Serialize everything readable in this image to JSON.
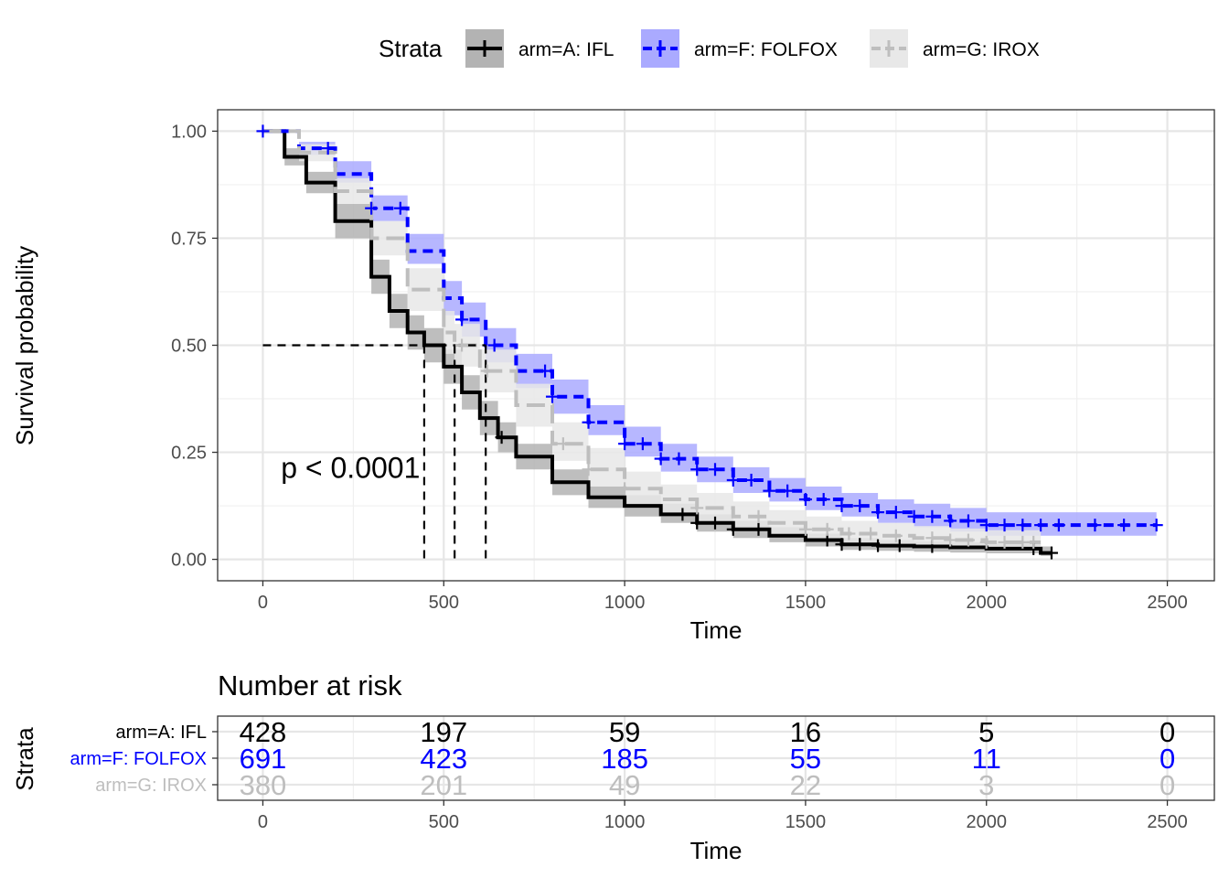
{
  "chart_data": [
    {
      "type": "line",
      "subtype": "kaplan-meier",
      "title": "",
      "xlabel": "Time",
      "ylabel": "Survival probability",
      "xlim": [
        -125,
        2630
      ],
      "ylim": [
        -0.05,
        1.05
      ],
      "x_ticks": [
        0,
        500,
        1000,
        1500,
        2000,
        2500
      ],
      "y_ticks": [
        0.0,
        0.25,
        0.5,
        0.75,
        1.0
      ],
      "y_tick_labels": [
        "0.00",
        "0.25",
        "0.50",
        "0.75",
        "1.00"
      ],
      "grid": true,
      "legend": {
        "title": "Strata",
        "position": "top",
        "entries": [
          "arm=A: IFL",
          "arm=F: FOLFOX",
          "arm=G: IROX"
        ]
      },
      "annotation": {
        "text": "p < 0.0001",
        "x": 50,
        "y": 0.19
      },
      "median_survival": {
        "y": 0.5,
        "x": [
          446,
          530,
          616
        ]
      },
      "series": [
        {
          "name": "arm=A: IFL",
          "color": "#000000",
          "fill": "#b3b3b3",
          "line_style": "solid",
          "x": [
            0,
            60,
            120,
            200,
            300,
            350,
            400,
            446,
            500,
            550,
            600,
            650,
            700,
            800,
            900,
            1000,
            1100,
            1200,
            1300,
            1400,
            1500,
            1600,
            1700,
            1800,
            1900,
            2000,
            2100,
            2150,
            2180
          ],
          "y": [
            1.0,
            0.94,
            0.88,
            0.79,
            0.66,
            0.58,
            0.53,
            0.5,
            0.45,
            0.39,
            0.33,
            0.285,
            0.24,
            0.18,
            0.145,
            0.125,
            0.105,
            0.085,
            0.07,
            0.055,
            0.045,
            0.035,
            0.032,
            0.03,
            0.028,
            0.025,
            0.025,
            0.015,
            0.015
          ],
          "ci_lower": [
            1.0,
            0.92,
            0.855,
            0.75,
            0.62,
            0.54,
            0.49,
            0.46,
            0.41,
            0.35,
            0.29,
            0.25,
            0.21,
            0.15,
            0.12,
            0.1,
            0.085,
            0.065,
            0.05,
            0.04,
            0.03,
            0.022,
            0.02,
            0.018,
            0.016,
            0.014,
            0.014,
            0.008,
            0.008
          ],
          "ci_upper": [
            1.0,
            0.96,
            0.905,
            0.83,
            0.7,
            0.62,
            0.57,
            0.54,
            0.49,
            0.43,
            0.37,
            0.32,
            0.27,
            0.21,
            0.17,
            0.15,
            0.13,
            0.105,
            0.09,
            0.075,
            0.06,
            0.05,
            0.045,
            0.042,
            0.04,
            0.038,
            0.038,
            0.03,
            0.03
          ],
          "censor_x": [
            660,
            1160,
            1200,
            1250,
            1300,
            1370,
            1560,
            1600,
            1650,
            1700,
            1760,
            1850,
            2130,
            2180
          ]
        },
        {
          "name": "arm=F: FOLFOX",
          "color": "#0000ff",
          "fill": "#aaaaff",
          "line_style": "dashed",
          "x": [
            0,
            100,
            200,
            300,
            400,
            500,
            550,
            616,
            700,
            800,
            900,
            1000,
            1100,
            1200,
            1300,
            1400,
            1500,
            1600,
            1700,
            1800,
            1900,
            2000,
            2100,
            2200,
            2300,
            2470
          ],
          "y": [
            1.0,
            0.96,
            0.9,
            0.82,
            0.72,
            0.61,
            0.56,
            0.5,
            0.44,
            0.38,
            0.32,
            0.27,
            0.235,
            0.21,
            0.185,
            0.16,
            0.14,
            0.125,
            0.11,
            0.1,
            0.09,
            0.08,
            0.08,
            0.08,
            0.08,
            0.08
          ],
          "ci_lower": [
            1.0,
            0.945,
            0.88,
            0.79,
            0.69,
            0.57,
            0.52,
            0.46,
            0.4,
            0.34,
            0.29,
            0.24,
            0.205,
            0.18,
            0.155,
            0.135,
            0.115,
            0.1,
            0.085,
            0.075,
            0.065,
            0.055,
            0.055,
            0.055,
            0.055,
            0.055
          ],
          "ci_upper": [
            1.0,
            0.975,
            0.93,
            0.85,
            0.76,
            0.65,
            0.6,
            0.54,
            0.48,
            0.42,
            0.36,
            0.31,
            0.27,
            0.24,
            0.215,
            0.19,
            0.17,
            0.155,
            0.14,
            0.13,
            0.12,
            0.11,
            0.11,
            0.11,
            0.11,
            0.11
          ],
          "censor_x": [
            0,
            180,
            300,
            380,
            550,
            640,
            780,
            800,
            900,
            1000,
            1050,
            1100,
            1150,
            1200,
            1250,
            1300,
            1350,
            1400,
            1450,
            1500,
            1550,
            1600,
            1650,
            1700,
            1750,
            1800,
            1850,
            1900,
            1950,
            2000,
            2050,
            2100,
            2150,
            2200,
            2300,
            2380,
            2470
          ]
        },
        {
          "name": "arm=G: IROX",
          "color": "#bebebe",
          "fill": "#e8e8e8",
          "line_style": "longdash",
          "x": [
            0,
            100,
            200,
            300,
            400,
            500,
            530,
            600,
            700,
            800,
            900,
            1000,
            1100,
            1200,
            1300,
            1400,
            1500,
            1600,
            1700,
            1800,
            1900,
            2000,
            2100,
            2150
          ],
          "y": [
            1.0,
            0.95,
            0.86,
            0.75,
            0.63,
            0.53,
            0.5,
            0.44,
            0.36,
            0.27,
            0.21,
            0.165,
            0.14,
            0.12,
            0.1,
            0.085,
            0.07,
            0.06,
            0.055,
            0.05,
            0.045,
            0.04,
            0.04,
            0.04
          ],
          "ci_lower": [
            1.0,
            0.93,
            0.83,
            0.71,
            0.58,
            0.48,
            0.45,
            0.39,
            0.31,
            0.23,
            0.17,
            0.13,
            0.105,
            0.085,
            0.07,
            0.055,
            0.045,
            0.035,
            0.03,
            0.025,
            0.022,
            0.02,
            0.02,
            0.02
          ],
          "ci_upper": [
            1.0,
            0.97,
            0.89,
            0.79,
            0.68,
            0.58,
            0.55,
            0.49,
            0.41,
            0.32,
            0.26,
            0.205,
            0.175,
            0.155,
            0.135,
            0.115,
            0.1,
            0.09,
            0.085,
            0.078,
            0.072,
            0.068,
            0.068,
            0.068
          ],
          "censor_x": [
            550,
            620,
            830,
            900,
            1000,
            1200,
            1370,
            1500,
            1560,
            1620,
            1680,
            1750,
            1850,
            1900,
            1950,
            2000,
            2050,
            2100,
            2130
          ]
        }
      ]
    },
    {
      "type": "table",
      "title": "Number at risk",
      "xlabel": "Time",
      "ylabel": "Strata",
      "x_ticks": [
        0,
        500,
        1000,
        1500,
        2000,
        2500
      ],
      "rows": [
        {
          "name": "arm=A: IFL",
          "color": "#000000",
          "values": [
            "428",
            "197",
            "59",
            "16",
            "5",
            "0"
          ]
        },
        {
          "name": "arm=F: FOLFOX",
          "color": "#0000ff",
          "values": [
            "691",
            "423",
            "185",
            "55",
            "11",
            "0"
          ]
        },
        {
          "name": "arm=G: IROX",
          "color": "#bebebe",
          "values": [
            "380",
            "201",
            "49",
            "22",
            "3",
            "0"
          ]
        }
      ]
    }
  ]
}
